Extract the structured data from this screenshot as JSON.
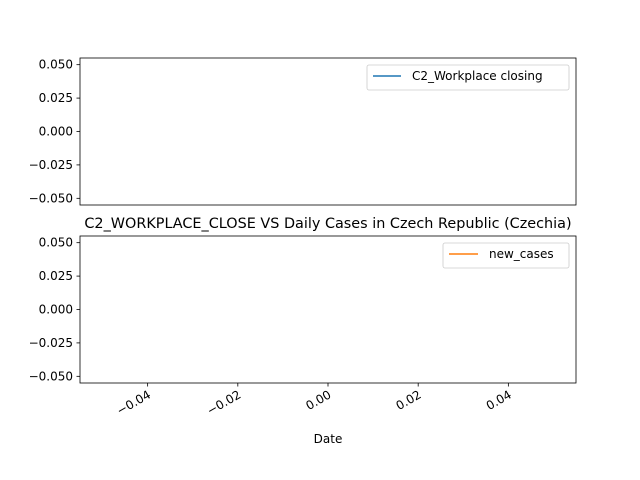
{
  "chart_data": [
    {
      "type": "line",
      "title": "",
      "xlabel": "",
      "ylabel": "",
      "ylim": [
        -0.055,
        0.055
      ],
      "yticks": [
        "0.050",
        "0.025",
        "0.000",
        "−0.025",
        "−0.050"
      ],
      "ytick_values": [
        0.05,
        0.025,
        0.0,
        -0.025,
        -0.05
      ],
      "series": [
        {
          "name": "C2_Workplace closing",
          "color": "#1f77b4",
          "x": [],
          "y": []
        }
      ],
      "legend": "upper right",
      "grid": false
    },
    {
      "type": "line",
      "title": "C2_WORKPLACE_CLOSE VS Daily Cases in Czech Republic (Czechia)",
      "xlabel": "Date",
      "ylabel": "",
      "xlim": [
        -0.055,
        0.055
      ],
      "ylim": [
        -0.055,
        0.055
      ],
      "xticks": [
        "−0.04",
        "−0.02",
        "0.00",
        "0.02",
        "0.04"
      ],
      "xtick_values": [
        -0.04,
        -0.02,
        0.0,
        0.02,
        0.04
      ],
      "yticks": [
        "0.050",
        "0.025",
        "0.000",
        "−0.025",
        "−0.050"
      ],
      "ytick_values": [
        0.05,
        0.025,
        0.0,
        -0.025,
        -0.05
      ],
      "series": [
        {
          "name": "new_cases",
          "color": "#ff7f0e",
          "x": [],
          "y": []
        }
      ],
      "legend": "upper right",
      "grid": false
    }
  ]
}
